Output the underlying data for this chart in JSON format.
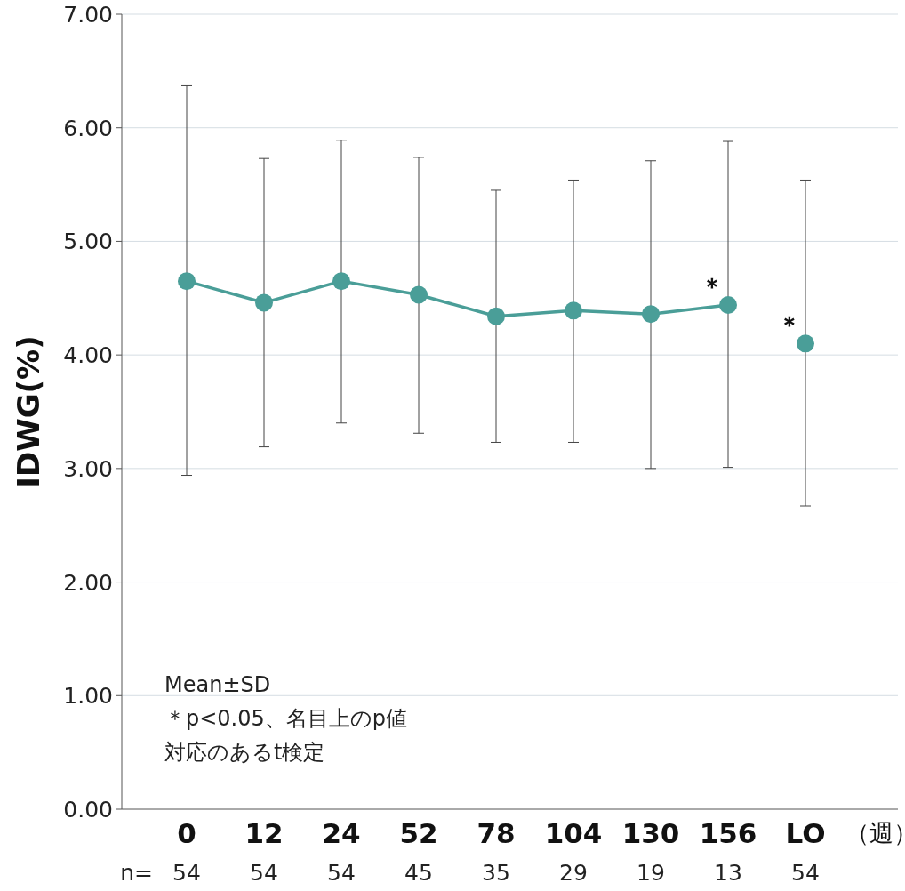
{
  "chart_data": {
    "type": "line",
    "categories": [
      "0",
      "12",
      "24",
      "52",
      "78",
      "104",
      "130",
      "156",
      "LO"
    ],
    "xlabel": "（週）",
    "ylabel": "IDWG(%)",
    "series": [
      {
        "color": "#4a9e98",
        "values": [
          4.65,
          4.46,
          4.65,
          4.53,
          4.34,
          4.39,
          4.36,
          4.44,
          null
        ],
        "errors": [
          [
            2.94,
            6.37
          ],
          [
            3.19,
            5.73
          ],
          [
            3.4,
            5.89
          ],
          [
            3.31,
            5.74
          ],
          [
            3.23,
            5.45
          ],
          [
            3.23,
            5.54
          ],
          [
            3.0,
            5.71
          ],
          [
            3.01,
            5.88
          ],
          null
        ]
      },
      {
        "type": "scatter",
        "color": "#4a9e98",
        "values": [
          null,
          null,
          null,
          null,
          null,
          null,
          null,
          null,
          4.1
        ],
        "errors": [
          null,
          null,
          null,
          null,
          null,
          null,
          null,
          null,
          [
            2.67,
            5.54
          ]
        ]
      }
    ],
    "marker": "circle",
    "line_style": "solid",
    "grid": "y",
    "ylim": [
      0,
      7
    ],
    "yticks": [
      {
        "value": 0,
        "label": "0.00"
      },
      {
        "value": 1,
        "label": "1.00"
      },
      {
        "value": 2,
        "label": "2.00"
      },
      {
        "value": 3,
        "label": "3.00"
      },
      {
        "value": 4,
        "label": "4.00"
      },
      {
        "value": 5,
        "label": "5.00"
      },
      {
        "value": 6,
        "label": "6.00"
      },
      {
        "value": 7,
        "label": "7.00"
      }
    ],
    "annotations": [
      {
        "text": "＊",
        "x": "156",
        "y": 4.44
      },
      {
        "text": "＊",
        "x": "LO",
        "y": 4.1
      },
      "n=",
      "54",
      "54",
      "54",
      "45",
      "35",
      "29",
      "19",
      "13",
      "54",
      "Mean±SD",
      "＊p<0.05、名目上のp値",
      "対応のあるt検定"
    ]
  }
}
